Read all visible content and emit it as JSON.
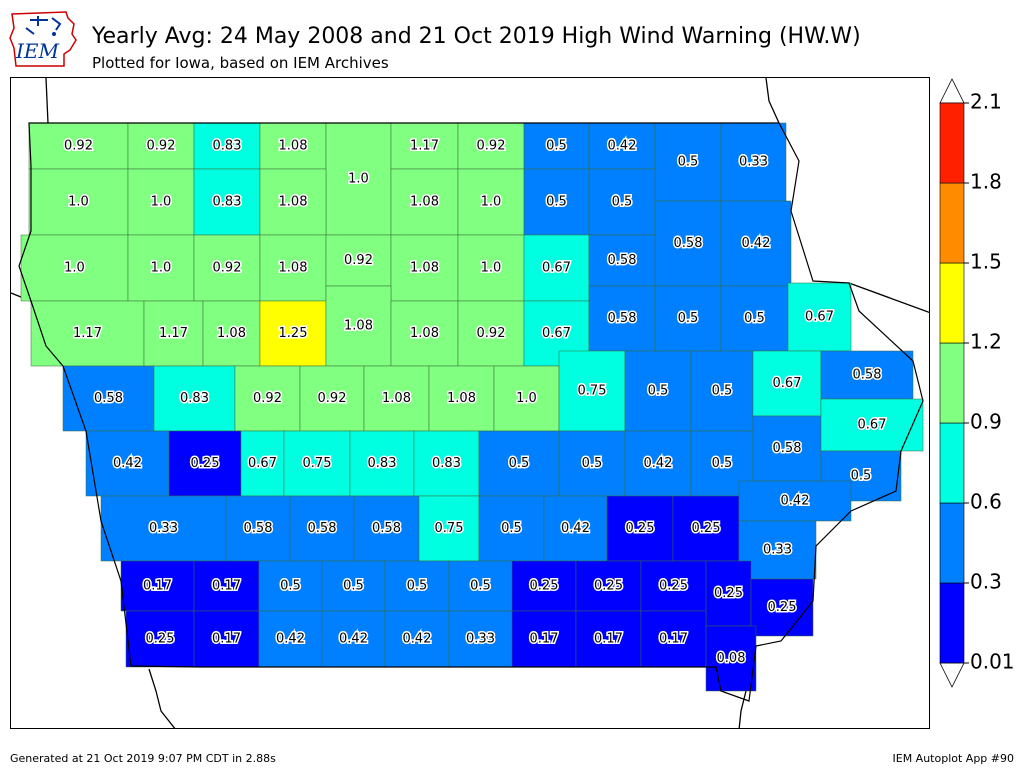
{
  "header": {
    "logo_text": "IEM",
    "title": "Yearly Avg: 24 May 2008 and 21 Oct 2019 High Wind Warning (HW.W)",
    "subtitle": "Plotted for Iowa, based on IEM Archives"
  },
  "footer": {
    "generated": "Generated at 21 Oct 2019 9:07 PM CDT in 2.88s",
    "app": "IEM Autoplot App #90"
  },
  "legend": {
    "bins": [
      {
        "from": 0.01,
        "to": 0.3,
        "color": "#0000ff"
      },
      {
        "from": 0.3,
        "to": 0.6,
        "color": "#0080ff"
      },
      {
        "from": 0.6,
        "to": 0.9,
        "color": "#00ffe0"
      },
      {
        "from": 0.9,
        "to": 1.2,
        "color": "#80ff80"
      },
      {
        "from": 1.2,
        "to": 1.5,
        "color": "#ffff00"
      },
      {
        "from": 1.5,
        "to": 1.8,
        "color": "#ff8c00"
      },
      {
        "from": 1.8,
        "to": 2.1,
        "color": "#ff2000"
      }
    ],
    "tick_labels": [
      "0.01",
      "0.3",
      "0.6",
      "0.9",
      "1.2",
      "1.5",
      "1.8",
      "2.1"
    ],
    "under_color": "#ffffff",
    "over_color": "#ffffff"
  },
  "counties": [
    {
      "value": "0.92"
    },
    {
      "value": "0.92"
    },
    {
      "value": "0.83"
    },
    {
      "value": "1.08"
    },
    {
      "value": "1.0"
    },
    {
      "value": "1.17"
    },
    {
      "value": "0.92"
    },
    {
      "value": "0.5"
    },
    {
      "value": "0.42"
    },
    {
      "value": "0.5"
    },
    {
      "value": "0.33"
    },
    {
      "value": "1.0"
    },
    {
      "value": "1.0"
    },
    {
      "value": "0.83"
    },
    {
      "value": "1.08"
    },
    {
      "value": "1.08"
    },
    {
      "value": "1.0"
    },
    {
      "value": "0.5"
    },
    {
      "value": "0.5"
    },
    {
      "value": "0.58"
    },
    {
      "value": "0.42"
    },
    {
      "value": "1.0"
    },
    {
      "value": "1.0"
    },
    {
      "value": "0.92"
    },
    {
      "value": "1.08"
    },
    {
      "value": "0.92"
    },
    {
      "value": "1.08"
    },
    {
      "value": "1.0"
    },
    {
      "value": "0.67"
    },
    {
      "value": "0.58"
    },
    {
      "value": "1.17"
    },
    {
      "value": "1.17"
    },
    {
      "value": "1.08"
    },
    {
      "value": "1.25"
    },
    {
      "value": "1.08"
    },
    {
      "value": "1.08"
    },
    {
      "value": "0.92"
    },
    {
      "value": "0.67"
    },
    {
      "value": "0.58"
    },
    {
      "value": "0.5"
    },
    {
      "value": "0.5"
    },
    {
      "value": "0.67"
    },
    {
      "value": "0.58"
    },
    {
      "value": "0.83"
    },
    {
      "value": "0.92"
    },
    {
      "value": "0.92"
    },
    {
      "value": "1.08"
    },
    {
      "value": "1.08"
    },
    {
      "value": "1.0"
    },
    {
      "value": "0.75"
    },
    {
      "value": "0.5"
    },
    {
      "value": "0.5"
    },
    {
      "value": "0.67"
    },
    {
      "value": "0.58"
    },
    {
      "value": "0.42"
    },
    {
      "value": "0.25"
    },
    {
      "value": "0.67"
    },
    {
      "value": "0.75"
    },
    {
      "value": "0.83"
    },
    {
      "value": "0.83"
    },
    {
      "value": "0.5"
    },
    {
      "value": "0.5"
    },
    {
      "value": "0.42"
    },
    {
      "value": "0.5"
    },
    {
      "value": "0.58"
    },
    {
      "value": "0.67"
    },
    {
      "value": "0.5"
    },
    {
      "value": "0.33"
    },
    {
      "value": "0.58"
    },
    {
      "value": "0.58"
    },
    {
      "value": "0.58"
    },
    {
      "value": "0.75"
    },
    {
      "value": "0.5"
    },
    {
      "value": "0.42"
    },
    {
      "value": "0.25"
    },
    {
      "value": "0.25"
    },
    {
      "value": "0.42"
    },
    {
      "value": "0.33"
    },
    {
      "value": "0.17"
    },
    {
      "value": "0.17"
    },
    {
      "value": "0.5"
    },
    {
      "value": "0.5"
    },
    {
      "value": "0.5"
    },
    {
      "value": "0.5"
    },
    {
      "value": "0.25"
    },
    {
      "value": "0.25"
    },
    {
      "value": "0.25"
    },
    {
      "value": "0.25"
    },
    {
      "value": "0.25"
    },
    {
      "value": "0.25"
    },
    {
      "value": "0.17"
    },
    {
      "value": "0.42"
    },
    {
      "value": "0.42"
    },
    {
      "value": "0.42"
    },
    {
      "value": "0.33"
    },
    {
      "value": "0.17"
    },
    {
      "value": "0.17"
    },
    {
      "value": "0.17"
    },
    {
      "value": "0.08"
    }
  ]
}
